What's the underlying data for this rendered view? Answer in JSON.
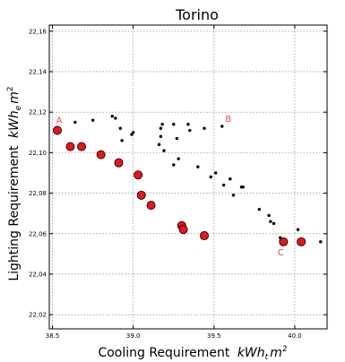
{
  "chart_data": {
    "type": "scatter",
    "title": "Torino",
    "xlabel": "Cooling Requirement",
    "xlabel_unit": {
      "base": "kWh",
      "sub": "t",
      "tail": "m",
      "sup": "2"
    },
    "ylabel": "Lighting Requirement",
    "ylabel_unit": {
      "base": "kWh",
      "sub": "e",
      "tail": "m",
      "sup": "2"
    },
    "xlim": [
      38.48,
      40.2
    ],
    "ylim": [
      22.013,
      22.163
    ],
    "x_ticks": [
      38.5,
      39.0,
      39.5,
      40.0
    ],
    "x_tick_labels": [
      "38.5",
      "39.0",
      "39.5",
      "40.0"
    ],
    "y_ticks": [
      22.02,
      22.04,
      22.06,
      22.08,
      22.1,
      22.12,
      22.14,
      22.16
    ],
    "y_tick_labels": [
      "22,02",
      "22,04",
      "22,06",
      "22,08",
      "22,10",
      "22,12",
      "22,14",
      "22,16"
    ],
    "grid": true,
    "colors": {
      "pareto": "#e8141c",
      "pareto_edge": "#000000",
      "other": "#000000",
      "annotation": "#e8474d"
    },
    "series": [
      {
        "marker": "large red circle",
        "points": [
          [
            38.53,
            22.111
          ],
          [
            38.61,
            22.103
          ],
          [
            38.68,
            22.103
          ],
          [
            38.8,
            22.099
          ],
          [
            38.91,
            22.095
          ],
          [
            39.03,
            22.089
          ],
          [
            39.05,
            22.079
          ],
          [
            39.11,
            22.074
          ],
          [
            39.3,
            22.064
          ],
          [
            39.31,
            22.062
          ],
          [
            39.44,
            22.059
          ],
          [
            39.93,
            22.056
          ],
          [
            40.04,
            22.056
          ]
        ]
      },
      {
        "marker": "small black dot",
        "points": [
          [
            38.64,
            22.115
          ],
          [
            38.75,
            22.116
          ],
          [
            38.87,
            22.118
          ],
          [
            38.89,
            22.117
          ],
          [
            38.92,
            22.112
          ],
          [
            38.93,
            22.106
          ],
          [
            38.99,
            22.109
          ],
          [
            39.0,
            22.11
          ],
          [
            39.16,
            22.104
          ],
          [
            39.17,
            22.112
          ],
          [
            39.17,
            22.108
          ],
          [
            39.18,
            22.114
          ],
          [
            39.19,
            22.101
          ],
          [
            39.25,
            22.114
          ],
          [
            39.27,
            22.107
          ],
          [
            39.25,
            22.094
          ],
          [
            39.28,
            22.097
          ],
          [
            39.34,
            22.114
          ],
          [
            39.35,
            22.111
          ],
          [
            39.44,
            22.112
          ],
          [
            39.4,
            22.093
          ],
          [
            39.48,
            22.088
          ],
          [
            39.51,
            22.09
          ],
          [
            39.55,
            22.113
          ],
          [
            39.56,
            22.084
          ],
          [
            39.6,
            22.087
          ],
          [
            39.62,
            22.079
          ],
          [
            39.67,
            22.083
          ],
          [
            39.68,
            22.083
          ],
          [
            39.78,
            22.072
          ],
          [
            39.84,
            22.069
          ],
          [
            39.85,
            22.066
          ],
          [
            39.87,
            22.065
          ],
          [
            39.91,
            22.058
          ],
          [
            40.02,
            22.062
          ],
          [
            40.16,
            22.056
          ]
        ]
      }
    ],
    "annotations": [
      {
        "text": "A",
        "x": 38.53,
        "y": 22.111
      },
      {
        "text": "B",
        "x": 39.55,
        "y": 22.113
      },
      {
        "text": "C",
        "x": 39.93,
        "y": 22.056
      }
    ]
  }
}
